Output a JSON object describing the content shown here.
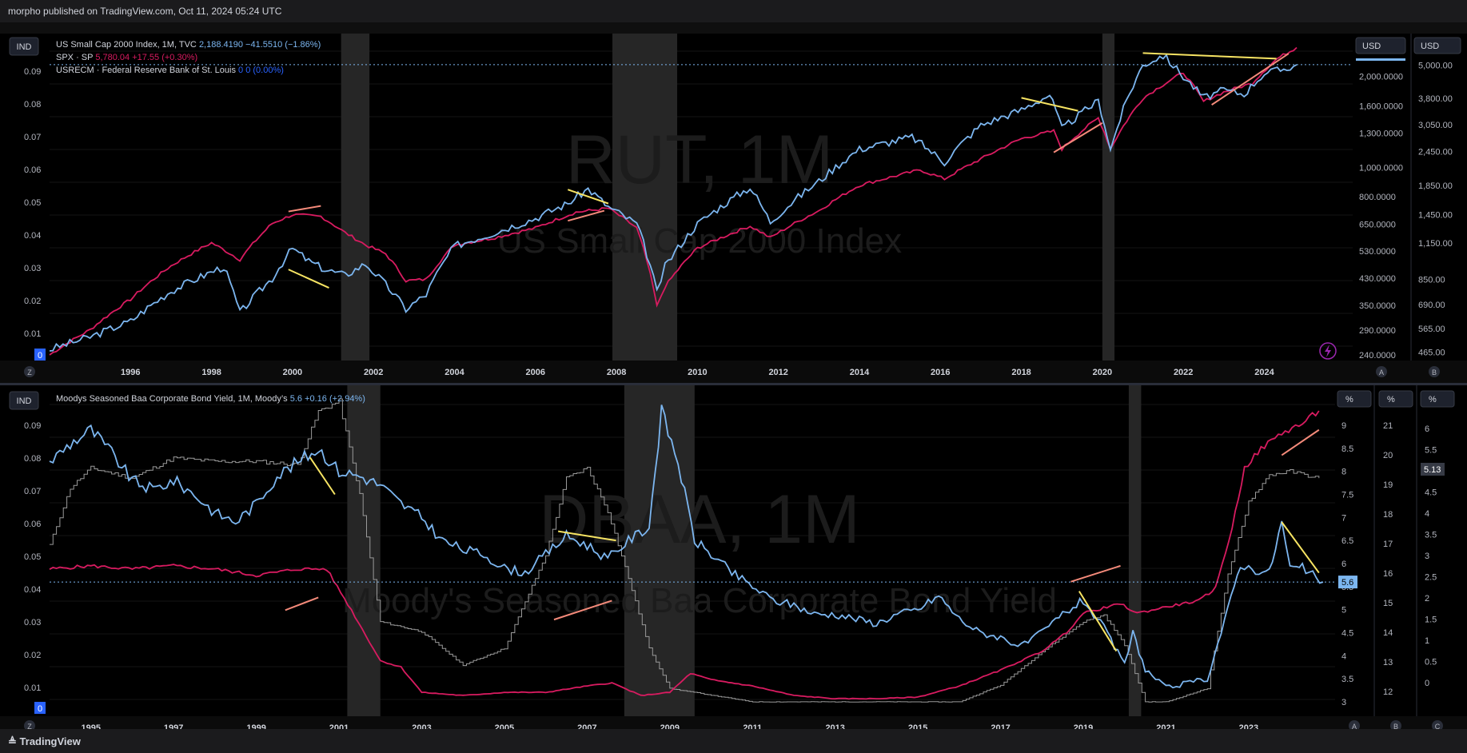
{
  "header": {
    "published": "morpho published on TradingView.com, Oct 11, 2024 05:24 UTC"
  },
  "footer": {
    "brand": "TradingView"
  },
  "top_pane": {
    "ind_label": "IND",
    "legend": [
      {
        "name": "US Small Cap 2000 Index, 1M, TVC",
        "value": "2,188.4190",
        "change": "−41.5510 (−1.86%)",
        "color": "#7cb6f0"
      },
      {
        "name": "SPX · SP",
        "value": "5,780.04",
        "change": "+17.55 (+0.30%)",
        "color": "#d81b60"
      },
      {
        "name": "USRECM · Federal Reserve Bank of St. Louis",
        "value": "0",
        "change": "0 (0.00%)",
        "color": "#2962ff"
      }
    ],
    "watermark_big": "RUT, 1M",
    "watermark_small": "US Small Cap 2000 Index",
    "left_axis": [
      "0.09",
      "0.08",
      "0.07",
      "0.06",
      "0.05",
      "0.04",
      "0.03",
      "0.02",
      "0.01"
    ],
    "zero_badge": "0",
    "axis1_currency": "USD",
    "axis1_ticks": [
      "2,000.0000",
      "1,600.0000",
      "1,300.0000",
      "1,000.0000",
      "800.0000",
      "650.0000",
      "530.0000",
      "430.0000",
      "350.0000",
      "290.0000",
      "240.0000"
    ],
    "axis2_currency": "USD",
    "axis2_ticks": [
      "5,000.00",
      "3,800.00",
      "3,050.00",
      "2,450.00",
      "1,850.00",
      "1,450.00",
      "1,150.00",
      "850.00",
      "690.00",
      "565.00",
      "465.00"
    ],
    "x_ticks": [
      "1996",
      "1998",
      "2000",
      "2002",
      "2004",
      "2006",
      "2008",
      "2010",
      "2012",
      "2014",
      "2016",
      "2018",
      "2020",
      "2022",
      "2024"
    ],
    "corner_buttons": [
      "Z",
      "A",
      "B"
    ]
  },
  "bottom_pane": {
    "ind_label": "IND",
    "legend": [
      {
        "name": "Moodys Seasoned Baa Corporate Bond Yield, 1M, Moody’s",
        "value": "5.6",
        "change": "+0.16 (+2.94%)",
        "color": "#7cb6f0"
      }
    ],
    "watermark_big": "DBAA, 1M",
    "watermark_small": "Moody's Seasoned Baa Corporate Bond Yield",
    "left_axis": [
      "0.09",
      "0.08",
      "0.07",
      "0.06",
      "0.05",
      "0.04",
      "0.03",
      "0.02",
      "0.01"
    ],
    "zero_badge": "0",
    "axis1_unit": "%",
    "axis1_ticks": [
      "9",
      "8.5",
      "8",
      "7.5",
      "7",
      "6.5",
      "6",
      "5.5",
      "5",
      "4.5",
      "4",
      "3.5",
      "3"
    ],
    "axis1_badge": "5.6",
    "axis2_unit": "%",
    "axis2_ticks": [
      "21",
      "20",
      "19",
      "18",
      "17",
      "16",
      "15",
      "14",
      "13",
      "12"
    ],
    "axis3_unit": "%",
    "axis3_ticks": [
      "6",
      "5.5",
      "5",
      "4.5",
      "4",
      "3.5",
      "3",
      "2.5",
      "2",
      "1.5",
      "1",
      "0.5",
      "0"
    ],
    "axis3_badge": "5.13",
    "x_ticks": [
      "1995",
      "1997",
      "1999",
      "2001",
      "2003",
      "2005",
      "2007",
      "2009",
      "2011",
      "2013",
      "2015",
      "2017",
      "2019",
      "2021",
      "2023"
    ],
    "corner_buttons": [
      "Z",
      "A",
      "B",
      "C"
    ]
  },
  "chart_data": [
    {
      "type": "line",
      "title": "US Small Cap 2000 Index, 1M, TVC",
      "log_scale": true,
      "recessions": [
        [
          2001.2,
          2001.9
        ],
        [
          2007.9,
          2009.5
        ],
        [
          2020.0,
          2020.3
        ]
      ],
      "series": [
        {
          "name": "US Small Cap 2000 Index, 1M, TVC",
          "color": "#7cb6f0",
          "x": [
            1994.0,
            1995.0,
            1996.0,
            1997.0,
            1998.3,
            1998.7,
            1999.5,
            2000.0,
            2000.4,
            2000.8,
            2001.3,
            2001.8,
            2002.3,
            2002.8,
            2003.3,
            2004.0,
            2005.0,
            2006.0,
            2006.8,
            2007.3,
            2007.8,
            2008.5,
            2009.0,
            2009.2,
            2010.0,
            2011.3,
            2011.8,
            2013.0,
            2014.0,
            2015.3,
            2016.1,
            2017.0,
            2018.0,
            2018.7,
            2019.0,
            2019.9,
            2020.2,
            2021.0,
            2021.5,
            2022.0,
            2022.5,
            2023.0,
            2023.5,
            2024.0,
            2024.4,
            2024.8
          ],
          "values": [
            250,
            275,
            310,
            390,
            470,
            330,
            430,
            540,
            490,
            460,
            440,
            480,
            410,
            340,
            380,
            550,
            610,
            680,
            760,
            850,
            740,
            650,
            385,
            470,
            650,
            860,
            660,
            900,
            1150,
            1260,
            1040,
            1380,
            1550,
            1740,
            1340,
            1660,
            1140,
            2180,
            2350,
            2000,
            1700,
            1800,
            1750,
            2050,
            2100,
            2188
          ]
        },
        {
          "name": "SPX · SP",
          "color": "#d81b60",
          "x": [
            1994.0,
            1995.0,
            1996.0,
            1997.0,
            1998.0,
            1998.7,
            1999.5,
            2000.0,
            2000.7,
            2001.3,
            2001.8,
            2002.3,
            2002.8,
            2003.3,
            2004.0,
            2005.0,
            2006.0,
            2007.0,
            2007.8,
            2008.5,
            2009.0,
            2009.2,
            2010.0,
            2011.3,
            2011.8,
            2013.0,
            2014.0,
            2015.5,
            2016.1,
            2017.0,
            2018.0,
            2018.8,
            2019.0,
            2019.9,
            2020.2,
            2021.0,
            2022.0,
            2022.5,
            2023.0,
            2023.7,
            2024.3,
            2024.8
          ],
          "values": [
            455,
            560,
            720,
            950,
            1150,
            1000,
            1350,
            1450,
            1430,
            1250,
            1130,
            1050,
            840,
            850,
            1130,
            1200,
            1300,
            1480,
            1530,
            1300,
            680,
            800,
            1100,
            1320,
            1200,
            1500,
            1850,
            2100,
            1950,
            2300,
            2720,
            2900,
            2500,
            3230,
            2500,
            3800,
            4700,
            3700,
            4000,
            4300,
            5250,
            5780
          ]
        },
        {
          "name": "USRECM · Federal Reserve Bank of St. Louis",
          "color": "#2962ff",
          "values": [
            0
          ]
        }
      ],
      "trendlines_yellow": [
        [
          1999.9,
          460,
          2000.9,
          400
        ],
        [
          2006.8,
          845,
          2007.8,
          760
        ],
        [
          2018.0,
          1700,
          2019.4,
          1540
        ],
        [
          2021.0,
          2390,
          2024.3,
          2290
        ]
      ],
      "trendlines_orange": [
        [
          1999.9,
          1490,
          2000.7,
          1560
        ],
        [
          2006.8,
          1380,
          2007.7,
          1500
        ],
        [
          2018.8,
          2430,
          2020.0,
          3100
        ],
        [
          2022.7,
          3600,
          2024.6,
          5500
        ]
      ]
    },
    {
      "type": "line",
      "title": "Moodys Seasoned Baa Corporate Bond Yield, 1M, Moody’s",
      "recessions": [
        [
          2001.2,
          2002.0
        ],
        [
          2007.9,
          2009.6
        ],
        [
          2020.1,
          2020.4
        ]
      ],
      "series": [
        {
          "name": "Moodys Seasoned Baa Corporate Bond Yield, 1M, Moody’s",
          "color": "#7cb6f0",
          "x": [
            1994.0,
            1994.5,
            1995.0,
            1995.5,
            1996.0,
            1996.5,
            1997.0,
            1997.5,
            1998.0,
            1998.5,
            1999.0,
            1999.5,
            2000.0,
            2000.5,
            2001.0,
            2001.5,
            2002.0,
            2002.5,
            2003.0,
            2003.5,
            2004.0,
            2004.5,
            2005.0,
            2005.5,
            2006.0,
            2006.5,
            2007.0,
            2007.5,
            2008.0,
            2008.5,
            2008.8,
            2009.2,
            2009.6,
            2010.0,
            2010.5,
            2011.0,
            2011.5,
            2012.0,
            2012.5,
            2013.0,
            2013.5,
            2014.0,
            2014.5,
            2015.0,
            2015.5,
            2016.0,
            2016.5,
            2017.0,
            2017.5,
            2018.0,
            2018.5,
            2019.0,
            2019.5,
            2020.0,
            2020.2,
            2020.5,
            2021.0,
            2021.5,
            2022.0,
            2022.5,
            2022.8,
            2023.0,
            2023.5,
            2023.8,
            2024.0,
            2024.3,
            2024.8
          ],
          "values": [
            8.2,
            8.6,
            8.9,
            8.4,
            7.8,
            7.6,
            7.8,
            7.5,
            7.1,
            6.9,
            7.3,
            7.9,
            8.2,
            8.5,
            8.0,
            7.9,
            7.7,
            7.3,
            7.0,
            6.5,
            6.3,
            6.2,
            5.9,
            5.8,
            6.2,
            6.6,
            6.4,
            6.1,
            6.5,
            6.8,
            9.3,
            8.2,
            6.5,
            6.2,
            5.8,
            5.5,
            5.2,
            5.1,
            4.9,
            4.9,
            4.8,
            4.7,
            4.9,
            5.0,
            5.3,
            4.8,
            4.5,
            4.4,
            4.2,
            4.5,
            4.9,
            5.2,
            4.6,
            3.8,
            4.5,
            3.7,
            3.3,
            3.4,
            3.5,
            5.0,
            6.0,
            5.9,
            5.8,
            6.9,
            5.9,
            5.9,
            5.6
          ]
        },
        {
          "name": "",
          "color": "#d81b60",
          "x": [
            1994.0,
            1995.0,
            1996.0,
            1997.0,
            1998.0,
            1999.0,
            2000.0,
            2000.7,
            2001.3,
            2002.0,
            2002.5,
            2003.0,
            2004.0,
            2005.0,
            2006.0,
            2007.0,
            2007.6,
            2008.3,
            2009.0,
            2009.5,
            2010.0,
            2011.0,
            2012.0,
            2013.0,
            2014.0,
            2015.0,
            2016.0,
            2017.0,
            2018.0,
            2018.6,
            2019.0,
            2019.9,
            2020.3,
            2021.0,
            2021.8,
            2022.2,
            2022.6,
            2022.9,
            2023.3,
            2023.8,
            2024.3,
            2024.7
          ],
          "values": [
            5.2,
            5.3,
            5.2,
            5.3,
            5.2,
            5.0,
            5.2,
            5.2,
            3.9,
            2.3,
            2.1,
            1.3,
            1.2,
            1.3,
            1.3,
            1.5,
            1.6,
            1.2,
            1.3,
            1.9,
            1.7,
            1.5,
            1.2,
            1.1,
            1.1,
            1.15,
            1.5,
            2.0,
            2.6,
            3.2,
            3.8,
            4.1,
            3.8,
            4.0,
            4.2,
            4.6,
            6.5,
            8.4,
            9.0,
            9.5,
            9.8,
            10.2
          ]
        },
        {
          "name": "",
          "color": "#9a9a9a",
          "x": [
            1994.0,
            1994.5,
            1995.0,
            1996.0,
            1997.0,
            1998.0,
            1999.0,
            2000.0,
            2000.5,
            2001.0,
            2001.5,
            2002.0,
            2003.0,
            2004.0,
            2005.0,
            2006.0,
            2006.5,
            2007.0,
            2007.5,
            2008.0,
            2008.5,
            2009.0,
            2010.0,
            2011.0,
            2012.0,
            2013.0,
            2014.0,
            2015.0,
            2016.0,
            2017.0,
            2018.0,
            2019.0,
            2019.5,
            2020.0,
            2020.5,
            2021.0,
            2022.0,
            2022.5,
            2023.0,
            2023.5,
            2024.0,
            2024.7
          ],
          "values": [
            5.5,
            7.2,
            7.8,
            7.5,
            8.1,
            8.0,
            8.0,
            7.9,
            9.5,
            9.8,
            7.0,
            3.2,
            2.9,
            1.9,
            2.4,
            5.2,
            7.5,
            7.8,
            6.5,
            4.5,
            2.4,
            1.2,
            1.0,
            0.8,
            0.8,
            0.8,
            0.8,
            0.8,
            0.8,
            1.3,
            2.3,
            3.2,
            3.4,
            2.5,
            0.8,
            0.8,
            1.2,
            4.6,
            6.8,
            7.6,
            7.7,
            7.5
          ]
        }
      ],
      "trendlines_yellow": [
        [
          2000.3,
          8.3,
          2000.9,
          7.5
        ],
        [
          2006.3,
          6.7,
          2007.7,
          6.5
        ],
        [
          2018.9,
          5.4,
          2019.8,
          4.1
        ],
        [
          2023.8,
          6.9,
          2024.7,
          5.8
        ]
      ],
      "trendlines_orange": [
        [
          1999.7,
          3.9,
          2000.5,
          4.3
        ],
        [
          2006.2,
          3.6,
          2007.6,
          4.2
        ],
        [
          2018.7,
          4.8,
          2019.9,
          5.3
        ],
        [
          2023.8,
          8.8,
          2024.7,
          9.6
        ]
      ]
    }
  ]
}
